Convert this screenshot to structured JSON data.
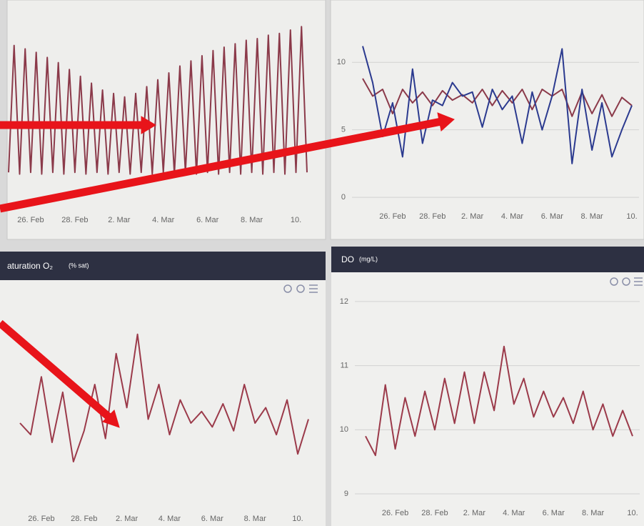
{
  "chart_data": [
    {
      "type": "line",
      "xlim": [
        -1,
        12.5
      ],
      "ylim": [
        0,
        10
      ],
      "xticks": [
        {
          "value": 0,
          "label": "26. Feb"
        },
        {
          "value": 2,
          "label": "28. Feb"
        },
        {
          "value": 4,
          "label": "2. Mar"
        },
        {
          "value": 6,
          "label": "4. Mar"
        },
        {
          "value": 8,
          "label": "6. Mar"
        },
        {
          "value": 10,
          "label": "8. Mar"
        },
        {
          "value": 12,
          "label": "10."
        }
      ],
      "x": [
        -1,
        -0.75,
        -0.5,
        -0.25,
        0,
        0.25,
        0.5,
        0.75,
        1,
        1.25,
        1.5,
        1.75,
        2,
        2.25,
        2.5,
        2.75,
        3,
        3.25,
        3.5,
        3.75,
        4,
        4.25,
        4.5,
        4.75,
        5,
        5.25,
        5.5,
        5.75,
        6,
        6.25,
        6.5,
        6.75,
        7,
        7.25,
        7.5,
        7.75,
        8,
        8.25,
        8.5,
        8.75,
        9,
        9.25,
        9.5,
        9.75,
        10,
        10.25,
        10.5,
        10.75,
        11,
        11.25,
        11.5,
        11.75,
        12,
        12.25,
        12.5
      ],
      "series": [
        {
          "color": "#8b3a4a",
          "values": [
            1.2,
            8.6,
            1.1,
            8.4,
            1.2,
            8.2,
            1.1,
            7.9,
            1.2,
            7.6,
            1.1,
            7.2,
            1.2,
            6.8,
            1.1,
            6.4,
            1.2,
            6.0,
            1.1,
            5.8,
            1.2,
            5.6,
            1.1,
            5.8,
            1.2,
            6.2,
            1.1,
            6.6,
            1.2,
            7.0,
            1.1,
            7.4,
            1.2,
            7.7,
            1.1,
            8.0,
            1.2,
            8.3,
            1.1,
            8.5,
            1.2,
            8.7,
            1.1,
            8.9,
            1.2,
            9.0,
            1.1,
            9.2,
            1.2,
            9.3,
            1.1,
            9.5,
            1.2,
            9.7,
            1.2
          ]
        }
      ]
    },
    {
      "type": "line",
      "xlim": [
        -1.5,
        12
      ],
      "ylim": [
        -1,
        12.5
      ],
      "yticks": [
        0,
        5,
        10
      ],
      "grid": true,
      "xticks": [
        {
          "value": 0,
          "label": "26. Feb"
        },
        {
          "value": 2,
          "label": "28. Feb"
        },
        {
          "value": 4,
          "label": "2. Mar"
        },
        {
          "value": 6,
          "label": "4. Mar"
        },
        {
          "value": 8,
          "label": "6. Mar"
        },
        {
          "value": 10,
          "label": "8. Mar"
        },
        {
          "value": 12,
          "label": "10."
        }
      ],
      "x": [
        -1.5,
        -1,
        -0.5,
        0,
        0.5,
        1,
        1.5,
        2,
        2.5,
        3,
        3.5,
        4,
        4.5,
        5,
        5.5,
        6,
        6.5,
        7,
        7.5,
        8,
        8.5,
        9,
        9.5,
        10,
        10.5,
        11,
        11.5,
        12
      ],
      "series": [
        {
          "color": "#8b3a4a",
          "values": [
            8.8,
            7.5,
            8.0,
            6.2,
            8.0,
            7.0,
            7.8,
            6.8,
            7.9,
            7.2,
            7.6,
            7.0,
            8.0,
            6.8,
            7.9,
            7.0,
            8.0,
            6.5,
            8.0,
            7.5,
            8.0,
            6.0,
            7.8,
            6.2,
            7.6,
            6.0,
            7.4,
            6.8
          ]
        },
        {
          "color": "#2b3a8f",
          "values": [
            11.2,
            8.5,
            4.5,
            7.0,
            3.0,
            9.5,
            4.0,
            7.2,
            6.8,
            8.5,
            7.5,
            7.8,
            5.2,
            8.0,
            6.5,
            7.5,
            4.0,
            7.8,
            5.0,
            7.5,
            11.0,
            2.5,
            8.0,
            3.5,
            7.0,
            3.0,
            5.0,
            6.8
          ]
        }
      ]
    },
    {
      "type": "line",
      "title": "aturation O₂",
      "subtitle": "(% sat)",
      "xlim": [
        -1,
        12.5
      ],
      "ylim": [
        80,
        130
      ],
      "xticks": [
        {
          "value": 0,
          "label": "26. Feb"
        },
        {
          "value": 2,
          "label": "28. Feb"
        },
        {
          "value": 4,
          "label": "2. Mar"
        },
        {
          "value": 6,
          "label": "4. Mar"
        },
        {
          "value": 8,
          "label": "6. Mar"
        },
        {
          "value": 10,
          "label": "8. Mar"
        },
        {
          "value": 12,
          "label": "10."
        }
      ],
      "x": [
        -1,
        -0.5,
        0,
        0.5,
        1,
        1.5,
        2,
        2.5,
        3,
        3.5,
        4,
        4.5,
        5,
        5.5,
        6,
        6.5,
        7,
        7.5,
        8,
        8.5,
        9,
        9.5,
        10,
        10.5,
        11,
        11.5,
        12,
        12.5
      ],
      "series": [
        {
          "color": "#9b3a4a",
          "values": [
            100,
            97,
            112,
            95,
            108,
            90,
            98,
            110,
            96,
            118,
            104,
            123,
            101,
            110,
            97,
            106,
            100,
            103,
            99,
            105,
            98,
            110,
            100,
            104,
            97,
            106,
            92,
            101
          ]
        }
      ]
    },
    {
      "type": "line",
      "title": "DO",
      "subtitle": "(mg/L)",
      "xlim": [
        -1.5,
        12
      ],
      "ylim": [
        8.9,
        12.3
      ],
      "yticks": [
        9,
        10,
        11,
        12
      ],
      "grid": true,
      "xticks": [
        {
          "value": 0,
          "label": "26. Feb"
        },
        {
          "value": 2,
          "label": "28. Feb"
        },
        {
          "value": 4,
          "label": "2. Mar"
        },
        {
          "value": 6,
          "label": "4. Mar"
        },
        {
          "value": 8,
          "label": "6. Mar"
        },
        {
          "value": 10,
          "label": "8. Mar"
        },
        {
          "value": 12,
          "label": "10."
        }
      ],
      "x": [
        -1.5,
        -1,
        -0.5,
        0,
        0.5,
        1,
        1.5,
        2,
        2.5,
        3,
        3.5,
        4,
        4.5,
        5,
        5.5,
        6,
        6.5,
        7,
        7.5,
        8,
        8.5,
        9,
        9.5,
        10,
        10.5,
        11,
        11.5,
        12
      ],
      "series": [
        {
          "color": "#9b3a4a",
          "values": [
            9.9,
            9.6,
            10.7,
            9.7,
            10.5,
            9.9,
            10.6,
            10.0,
            10.8,
            10.1,
            10.9,
            10.1,
            10.9,
            10.3,
            11.3,
            10.4,
            10.8,
            10.2,
            10.6,
            10.2,
            10.5,
            10.1,
            10.6,
            10.0,
            10.4,
            9.9,
            10.3,
            9.9
          ]
        }
      ]
    }
  ]
}
